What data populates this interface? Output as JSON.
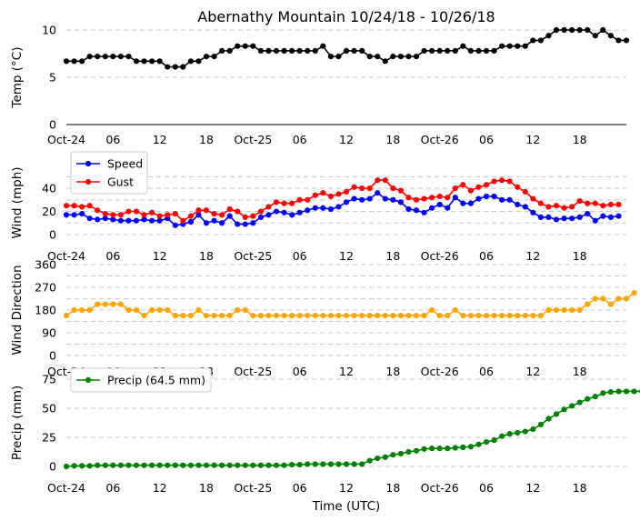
{
  "chart_data": {
    "type": "line",
    "title": "Abernathy Mountain 10/24/18 - 10/26/18",
    "xlabel": "Time (UTC)",
    "x_ticks": [
      {
        "hour": 0,
        "label": "Oct-24"
      },
      {
        "hour": 6,
        "label": "06"
      },
      {
        "hour": 12,
        "label": "12"
      },
      {
        "hour": 18,
        "label": "18"
      },
      {
        "hour": 24,
        "label": "Oct-25"
      },
      {
        "hour": 30,
        "label": "06"
      },
      {
        "hour": 36,
        "label": "12"
      },
      {
        "hour": 42,
        "label": "18"
      },
      {
        "hour": 48,
        "label": "Oct-26"
      },
      {
        "hour": 54,
        "label": "06"
      },
      {
        "hour": 60,
        "label": "12"
      },
      {
        "hour": 66,
        "label": "18"
      }
    ],
    "xlim": [
      0,
      72
    ],
    "x_step_hours": 1,
    "panels": [
      {
        "ylabel": "Temp (°C)",
        "ylim": [
          0,
          10
        ],
        "yticks": [
          0,
          5,
          10
        ],
        "hgrid": [
          0,
          5,
          10
        ],
        "bottom_spine": true,
        "legend": null,
        "series": [
          {
            "name": "Temp",
            "color": "#000000",
            "values": [
              6.7,
              6.7,
              6.7,
              7.2,
              7.2,
              7.2,
              7.2,
              7.2,
              7.2,
              6.7,
              6.7,
              6.7,
              6.7,
              6.1,
              6.1,
              6.1,
              6.7,
              6.7,
              7.2,
              7.2,
              7.8,
              7.8,
              8.3,
              8.3,
              8.3,
              7.8,
              7.8,
              7.8,
              7.8,
              7.8,
              7.8,
              7.8,
              7.8,
              8.3,
              7.2,
              7.2,
              7.8,
              7.8,
              7.8,
              7.2,
              7.2,
              6.7,
              7.2,
              7.2,
              7.2,
              7.2,
              7.8,
              7.8,
              7.8,
              7.8,
              7.8,
              8.3,
              7.8,
              7.8,
              7.8,
              7.8,
              8.3,
              8.3,
              8.3,
              8.3,
              8.9,
              8.9,
              9.4,
              10.0,
              10.0,
              10.0,
              10.0,
              10.0,
              9.4,
              10.0,
              9.4,
              8.9,
              8.9
            ]
          }
        ]
      },
      {
        "ylabel": "Wind (mph)",
        "ylim": [
          0,
          55
        ],
        "yticks": [
          0,
          20,
          40
        ],
        "hgrid": [
          0,
          10,
          20,
          30,
          40,
          50
        ],
        "bottom_spine": false,
        "legend": "top-left",
        "series": [
          {
            "name": "Speed",
            "color": "#0000ff",
            "values": [
              17,
              17,
              18,
              14,
              13,
              14,
              13,
              12,
              12,
              12,
              13,
              12,
              12,
              14,
              8,
              9,
              11,
              17,
              10,
              12,
              10,
              16,
              9,
              9,
              10,
              15,
              17,
              20,
              19,
              17,
              19,
              21,
              23,
              23,
              22,
              24,
              28,
              31,
              30,
              31,
              36,
              31,
              30,
              28,
              22,
              21,
              19,
              23,
              26,
              23,
              32,
              27,
              27,
              31,
              33,
              33,
              30,
              30,
              26,
              24,
              19,
              15,
              15,
              13,
              14,
              14,
              15,
              18,
              12,
              16,
              15,
              16
            ]
          },
          {
            "name": "Gust",
            "color": "#ff0000",
            "values": [
              25,
              25,
              24,
              25,
              21,
              18,
              17,
              17,
              20,
              20,
              17,
              19,
              16,
              17,
              18,
              12,
              16,
              21,
              21,
              18,
              17,
              22,
              20,
              15,
              16,
              20,
              24,
              28,
              27,
              27,
              30,
              30,
              34,
              36,
              33,
              35,
              37,
              41,
              40,
              40,
              47,
              47,
              40,
              38,
              32,
              30,
              31,
              32,
              33,
              32,
              40,
              43,
              38,
              41,
              43,
              46,
              47,
              46,
              41,
              37,
              31,
              27,
              24,
              25,
              23,
              24,
              29,
              27,
              27,
              25,
              26,
              26
            ]
          }
        ]
      },
      {
        "ylabel": "Wind Direction",
        "ylim": [
          0,
          360
        ],
        "yticks": [
          0,
          90,
          180,
          270,
          360
        ],
        "hgrid": [
          0,
          45,
          90,
          135,
          180,
          225,
          270,
          315,
          360
        ],
        "bottom_spine": false,
        "legend": null,
        "series": [
          {
            "name": "Direction",
            "color": "#ffa500",
            "values": [
              158,
              180,
              180,
              180,
              203,
              203,
              203,
              203,
              180,
              180,
              158,
              180,
              180,
              180,
              158,
              158,
              158,
              180,
              158,
              158,
              158,
              158,
              180,
              180,
              158,
              158,
              158,
              158,
              158,
              158,
              158,
              158,
              158,
              158,
              158,
              158,
              158,
              158,
              158,
              158,
              158,
              158,
              158,
              158,
              158,
              158,
              158,
              180,
              158,
              158,
              180,
              158,
              158,
              158,
              158,
              158,
              158,
              158,
              158,
              158,
              158,
              158,
              180,
              180,
              180,
              180,
              180,
              203,
              225,
              225,
              203,
              225,
              225,
              248
            ]
          }
        ]
      },
      {
        "ylabel": "Precip (mm)",
        "ylim": [
          0,
          75
        ],
        "yticks": [
          0,
          25,
          50,
          75
        ],
        "hgrid": [
          0,
          25,
          50,
          75
        ],
        "bottom_spine": false,
        "legend": "top-left",
        "series": [
          {
            "name": "Precip (64.5 mm)",
            "color": "#008000",
            "values": [
              0,
              0.5,
              0.5,
              0.5,
              1,
              1,
              1,
              1,
              1,
              1,
              1,
              1,
              1,
              1,
              1,
              1,
              1,
              1,
              1,
              1,
              1,
              1,
              1,
              1,
              1,
              1,
              1,
              1,
              1,
              1.5,
              1.5,
              2,
              2,
              2,
              2,
              2,
              2,
              2,
              2,
              5,
              7,
              8,
              10,
              11,
              12.5,
              13.5,
              15,
              15.5,
              15.5,
              15.5,
              16,
              16.5,
              17,
              19,
              21,
              22.5,
              26,
              28,
              29,
              30,
              32,
              36,
              41,
              45,
              49,
              52,
              55,
              58,
              60,
              63,
              64,
              64.5,
              64.5,
              64.5,
              64.5
            ]
          }
        ]
      }
    ]
  }
}
